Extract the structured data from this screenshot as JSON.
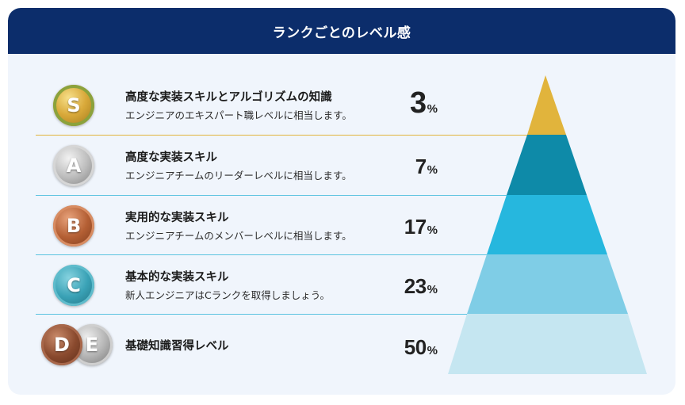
{
  "header": {
    "title": "ランクごとのレベル感"
  },
  "colors": {
    "header_bg": "#0c2d6b",
    "card_bg": "#f0f5fc",
    "tier_s": "#e1b43c",
    "tier_a": "#0e8aa8",
    "tier_b": "#26b7de",
    "tier_c": "#7fcde6",
    "tier_de": "#c5e6f1",
    "divider_gold": "#e1b43c",
    "divider_blue": "#5cc3e0"
  },
  "ranks": [
    {
      "badge": "S",
      "icon": "gold-laurel-s-rank-medal-icon",
      "title": "高度な実装スキルとアルゴリズムの知識",
      "description": "エンジニアのエキスパート職レベルに相当します。",
      "percent": "3",
      "percent_sign": "%"
    },
    {
      "badge": "A",
      "icon": "silver-a-rank-medal-icon",
      "title": "高度な実装スキル",
      "description": "エンジニアチームのリーダーレベルに相当します。",
      "percent": "7",
      "percent_sign": "%"
    },
    {
      "badge": "B",
      "icon": "bronze-b-rank-medal-icon",
      "title": "実用的な実装スキル",
      "description": "エンジニアチームのメンバーレベルに相当します。",
      "percent": "17",
      "percent_sign": "%"
    },
    {
      "badge": "C",
      "icon": "teal-c-rank-medal-icon",
      "title": "基本的な実装スキル",
      "description": "新人エンジニアはCランクを取得しましょう。",
      "percent": "23",
      "percent_sign": "%"
    },
    {
      "badge": "D",
      "badge2": "E",
      "icon": "d-e-rank-medal-icon",
      "title": "基礎知識習得レベル",
      "description": "",
      "percent": "50",
      "percent_sign": "%"
    }
  ]
}
